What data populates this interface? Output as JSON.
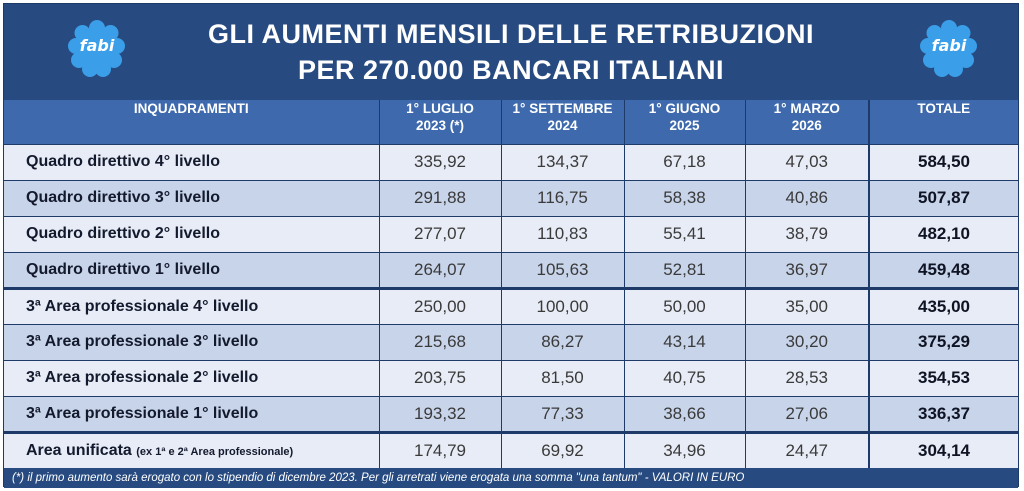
{
  "header": {
    "title_line1": "GLI AUMENTI MENSILI DELLE RETRIBUZIONI",
    "title_line2": "PER 270.000 BANCARI ITALIANI",
    "logo_text": "fabi",
    "logo_color": "#3a9ee8"
  },
  "table": {
    "columns": [
      {
        "line1": "INQUADRAMENTI",
        "line2": ""
      },
      {
        "line1": "1° LUGLIO",
        "line2": "2023 (*)"
      },
      {
        "line1": "1° SETTEMBRE",
        "line2": "2024"
      },
      {
        "line1": "1° GIUGNO",
        "line2": "2025"
      },
      {
        "line1": "1° MARZO",
        "line2": "2026"
      },
      {
        "line1": "TOTALE",
        "line2": ""
      }
    ],
    "rows": [
      {
        "label": "Quadro direttivo 4° livello",
        "note": "",
        "values": [
          "335,92",
          "134,37",
          "67,18",
          "47,03"
        ],
        "total": "584,50"
      },
      {
        "label": "Quadro direttivo 3° livello",
        "note": "",
        "values": [
          "291,88",
          "116,75",
          "58,38",
          "40,86"
        ],
        "total": "507,87"
      },
      {
        "label": "Quadro direttivo 2° livello",
        "note": "",
        "values": [
          "277,07",
          "110,83",
          "55,41",
          "38,79"
        ],
        "total": "482,10"
      },
      {
        "label": "Quadro direttivo 1° livello",
        "note": "",
        "values": [
          "264,07",
          "105,63",
          "52,81",
          "36,97"
        ],
        "total": "459,48"
      },
      {
        "label": "3ª Area professionale 4° livello",
        "note": "",
        "values": [
          "250,00",
          "100,00",
          "50,00",
          "35,00"
        ],
        "total": "435,00"
      },
      {
        "label": "3ª Area professionale 3° livello",
        "note": "",
        "values": [
          "215,68",
          "86,27",
          "43,14",
          "30,20"
        ],
        "total": "375,29"
      },
      {
        "label": "3ª Area professionale 2° livello",
        "note": "",
        "values": [
          "203,75",
          "81,50",
          "40,75",
          "28,53"
        ],
        "total": "354,53"
      },
      {
        "label": "3ª Area professionale 1° livello",
        "note": "",
        "values": [
          "193,32",
          "77,33",
          "38,66",
          "27,06"
        ],
        "total": "336,37"
      },
      {
        "label": "Area unificata",
        "note": "(ex 1ª e 2ª Area professionale)",
        "values": [
          "174,79",
          "69,92",
          "34,96",
          "24,47"
        ],
        "total": "304,14"
      }
    ]
  },
  "footnote": "(*) il primo aumento sarà erogato con lo stipendio di dicembre 2023. Per gli arretrati viene erogata una somma \"una tantum\" - VALORI IN EURO"
}
